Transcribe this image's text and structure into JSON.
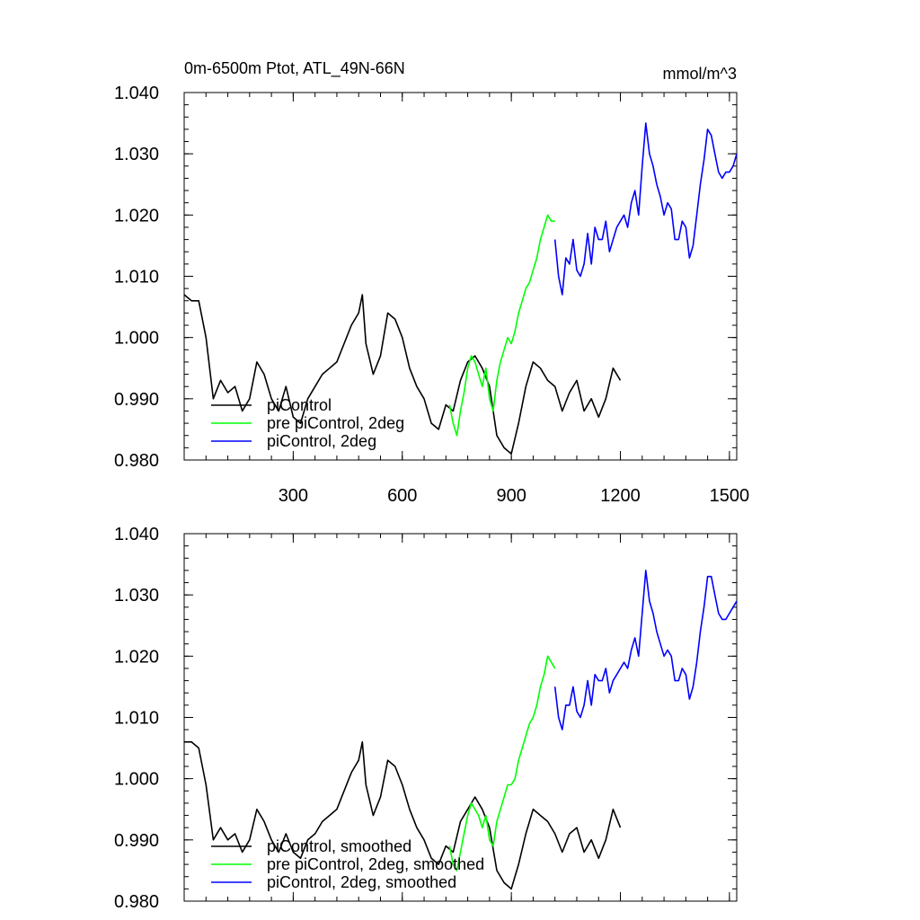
{
  "chart_data": [
    {
      "type": "line",
      "title": "0m-6500m Ptot, ATL_49N-66N",
      "units": "mmol/m^3",
      "xlim": [
        0,
        1520
      ],
      "ylim": [
        0.98,
        1.04
      ],
      "xticks": [
        300,
        600,
        900,
        1200,
        1500
      ],
      "xtick_labels": [
        "300",
        "600",
        "900",
        "1200",
        "1500"
      ],
      "yticks": [
        0.98,
        0.99,
        1.0,
        1.01,
        1.02,
        1.03,
        1.04
      ],
      "ytick_labels": [
        "0.980",
        "0.990",
        "1.000",
        "1.010",
        "1.020",
        "1.030",
        "1.040"
      ],
      "grid": false,
      "legend_position": "bottom-left",
      "series": [
        {
          "name": "piControl",
          "color": "#000000",
          "x": [
            0,
            20,
            40,
            60,
            80,
            100,
            120,
            140,
            160,
            180,
            200,
            220,
            240,
            260,
            280,
            300,
            320,
            340,
            360,
            380,
            400,
            420,
            440,
            460,
            480,
            490,
            500,
            520,
            540,
            560,
            580,
            600,
            620,
            640,
            660,
            680,
            700,
            720,
            740,
            760,
            780,
            800,
            820,
            840,
            860,
            880,
            900,
            920,
            940,
            960,
            980,
            1000,
            1020,
            1040,
            1060,
            1080,
            1100,
            1120,
            1140,
            1160,
            1180,
            1200
          ],
          "y": [
            1.007,
            1.006,
            1.006,
            1.0,
            0.99,
            0.993,
            0.991,
            0.992,
            0.988,
            0.99,
            0.996,
            0.994,
            0.99,
            0.988,
            0.992,
            0.987,
            0.986,
            0.99,
            0.992,
            0.994,
            0.995,
            0.996,
            0.999,
            1.002,
            1.004,
            1.007,
            0.999,
            0.994,
            0.997,
            1.004,
            1.003,
            1.0,
            0.995,
            0.992,
            0.99,
            0.986,
            0.985,
            0.989,
            0.988,
            0.993,
            0.996,
            0.997,
            0.995,
            0.992,
            0.984,
            0.982,
            0.981,
            0.986,
            0.992,
            0.996,
            0.995,
            0.993,
            0.992,
            0.988,
            0.991,
            0.993,
            0.988,
            0.99,
            0.987,
            0.99,
            0.995,
            0.993
          ]
        },
        {
          "name": "pre piControl, 2deg",
          "color": "#00ff00",
          "x": [
            730,
            740,
            750,
            760,
            770,
            780,
            790,
            800,
            810,
            820,
            830,
            840,
            850,
            860,
            870,
            880,
            890,
            900,
            910,
            920,
            930,
            940,
            950,
            960,
            970,
            980,
            990,
            1000,
            1010,
            1020
          ],
          "y": [
            0.989,
            0.986,
            0.984,
            0.988,
            0.991,
            0.995,
            0.997,
            0.996,
            0.994,
            0.992,
            0.995,
            0.99,
            0.988,
            0.993,
            0.996,
            0.998,
            1.0,
            0.999,
            1.001,
            1.004,
            1.006,
            1.008,
            1.009,
            1.011,
            1.013,
            1.016,
            1.018,
            1.02,
            1.019,
            1.019
          ]
        },
        {
          "name": "piControl, 2deg",
          "color": "#0000ff",
          "x": [
            1020,
            1030,
            1040,
            1050,
            1060,
            1070,
            1080,
            1090,
            1100,
            1110,
            1120,
            1130,
            1140,
            1150,
            1160,
            1170,
            1180,
            1190,
            1200,
            1210,
            1220,
            1230,
            1240,
            1250,
            1260,
            1270,
            1280,
            1290,
            1300,
            1310,
            1320,
            1330,
            1340,
            1350,
            1360,
            1370,
            1380,
            1390,
            1400,
            1410,
            1420,
            1430,
            1440,
            1450,
            1460,
            1470,
            1480,
            1490,
            1500,
            1510,
            1520
          ],
          "y": [
            1.016,
            1.01,
            1.007,
            1.013,
            1.012,
            1.016,
            1.011,
            1.01,
            1.012,
            1.017,
            1.012,
            1.018,
            1.016,
            1.016,
            1.019,
            1.014,
            1.016,
            1.018,
            1.019,
            1.02,
            1.018,
            1.022,
            1.024,
            1.02,
            1.028,
            1.035,
            1.03,
            1.028,
            1.025,
            1.023,
            1.02,
            1.022,
            1.021,
            1.016,
            1.016,
            1.019,
            1.018,
            1.013,
            1.015,
            1.02,
            1.025,
            1.029,
            1.034,
            1.033,
            1.03,
            1.027,
            1.026,
            1.027,
            1.027,
            1.028,
            1.03
          ]
        }
      ]
    },
    {
      "type": "line",
      "title": "",
      "xlim": [
        0,
        1520
      ],
      "ylim": [
        0.98,
        1.04
      ],
      "xticks": [
        300,
        600,
        900,
        1200,
        1500
      ],
      "xtick_labels": [],
      "yticks": [
        0.98,
        0.99,
        1.0,
        1.01,
        1.02,
        1.03,
        1.04
      ],
      "ytick_labels": [
        "0.980",
        "0.990",
        "1.000",
        "1.010",
        "1.020",
        "1.030",
        "1.040"
      ],
      "grid": false,
      "legend_position": "bottom-left",
      "series": [
        {
          "name": "piControl, smoothed",
          "color": "#000000",
          "x": [
            0,
            20,
            40,
            60,
            80,
            100,
            120,
            140,
            160,
            180,
            200,
            220,
            240,
            260,
            280,
            300,
            320,
            340,
            360,
            380,
            400,
            420,
            440,
            460,
            480,
            490,
            500,
            520,
            540,
            560,
            580,
            600,
            620,
            640,
            660,
            680,
            700,
            720,
            740,
            760,
            780,
            800,
            820,
            840,
            860,
            880,
            900,
            920,
            940,
            960,
            980,
            1000,
            1020,
            1040,
            1060,
            1080,
            1100,
            1120,
            1140,
            1160,
            1180,
            1200
          ],
          "y": [
            1.006,
            1.006,
            1.005,
            0.999,
            0.99,
            0.992,
            0.99,
            0.991,
            0.988,
            0.99,
            0.995,
            0.993,
            0.99,
            0.988,
            0.991,
            0.988,
            0.987,
            0.99,
            0.991,
            0.993,
            0.994,
            0.995,
            0.998,
            1.001,
            1.003,
            1.006,
            0.999,
            0.994,
            0.997,
            1.003,
            1.002,
            0.999,
            0.995,
            0.992,
            0.99,
            0.987,
            0.986,
            0.989,
            0.988,
            0.993,
            0.995,
            0.997,
            0.995,
            0.992,
            0.985,
            0.983,
            0.982,
            0.986,
            0.991,
            0.995,
            0.994,
            0.993,
            0.991,
            0.988,
            0.991,
            0.992,
            0.988,
            0.99,
            0.987,
            0.99,
            0.995,
            0.992
          ]
        },
        {
          "name": "pre piControl, 2deg, smoothed",
          "color": "#00ff00",
          "x": [
            730,
            740,
            750,
            760,
            770,
            780,
            790,
            800,
            810,
            820,
            830,
            840,
            850,
            860,
            870,
            880,
            890,
            900,
            910,
            920,
            930,
            940,
            950,
            960,
            970,
            980,
            990,
            1000,
            1010,
            1020
          ],
          "y": [
            0.989,
            0.986,
            0.985,
            0.988,
            0.991,
            0.994,
            0.996,
            0.995,
            0.994,
            0.992,
            0.994,
            0.99,
            0.989,
            0.993,
            0.995,
            0.997,
            0.999,
            0.999,
            1.0,
            1.003,
            1.005,
            1.007,
            1.009,
            1.01,
            1.012,
            1.015,
            1.017,
            1.02,
            1.019,
            1.018
          ]
        },
        {
          "name": "piControl, 2deg, smoothed",
          "color": "#0000ff",
          "x": [
            1020,
            1030,
            1040,
            1050,
            1060,
            1070,
            1080,
            1090,
            1100,
            1110,
            1120,
            1130,
            1140,
            1150,
            1160,
            1170,
            1180,
            1190,
            1200,
            1210,
            1220,
            1230,
            1240,
            1250,
            1260,
            1270,
            1280,
            1290,
            1300,
            1310,
            1320,
            1330,
            1340,
            1350,
            1360,
            1370,
            1380,
            1390,
            1400,
            1410,
            1420,
            1430,
            1440,
            1450,
            1460,
            1470,
            1480,
            1490,
            1500,
            1510,
            1520
          ],
          "y": [
            1.015,
            1.01,
            1.008,
            1.012,
            1.012,
            1.015,
            1.011,
            1.01,
            1.012,
            1.016,
            1.012,
            1.017,
            1.016,
            1.016,
            1.018,
            1.014,
            1.016,
            1.017,
            1.018,
            1.019,
            1.018,
            1.021,
            1.023,
            1.02,
            1.027,
            1.034,
            1.029,
            1.027,
            1.024,
            1.022,
            1.02,
            1.021,
            1.02,
            1.016,
            1.016,
            1.018,
            1.017,
            1.013,
            1.015,
            1.019,
            1.024,
            1.028,
            1.033,
            1.033,
            1.03,
            1.027,
            1.026,
            1.026,
            1.027,
            1.028,
            1.029
          ]
        }
      ]
    }
  ]
}
